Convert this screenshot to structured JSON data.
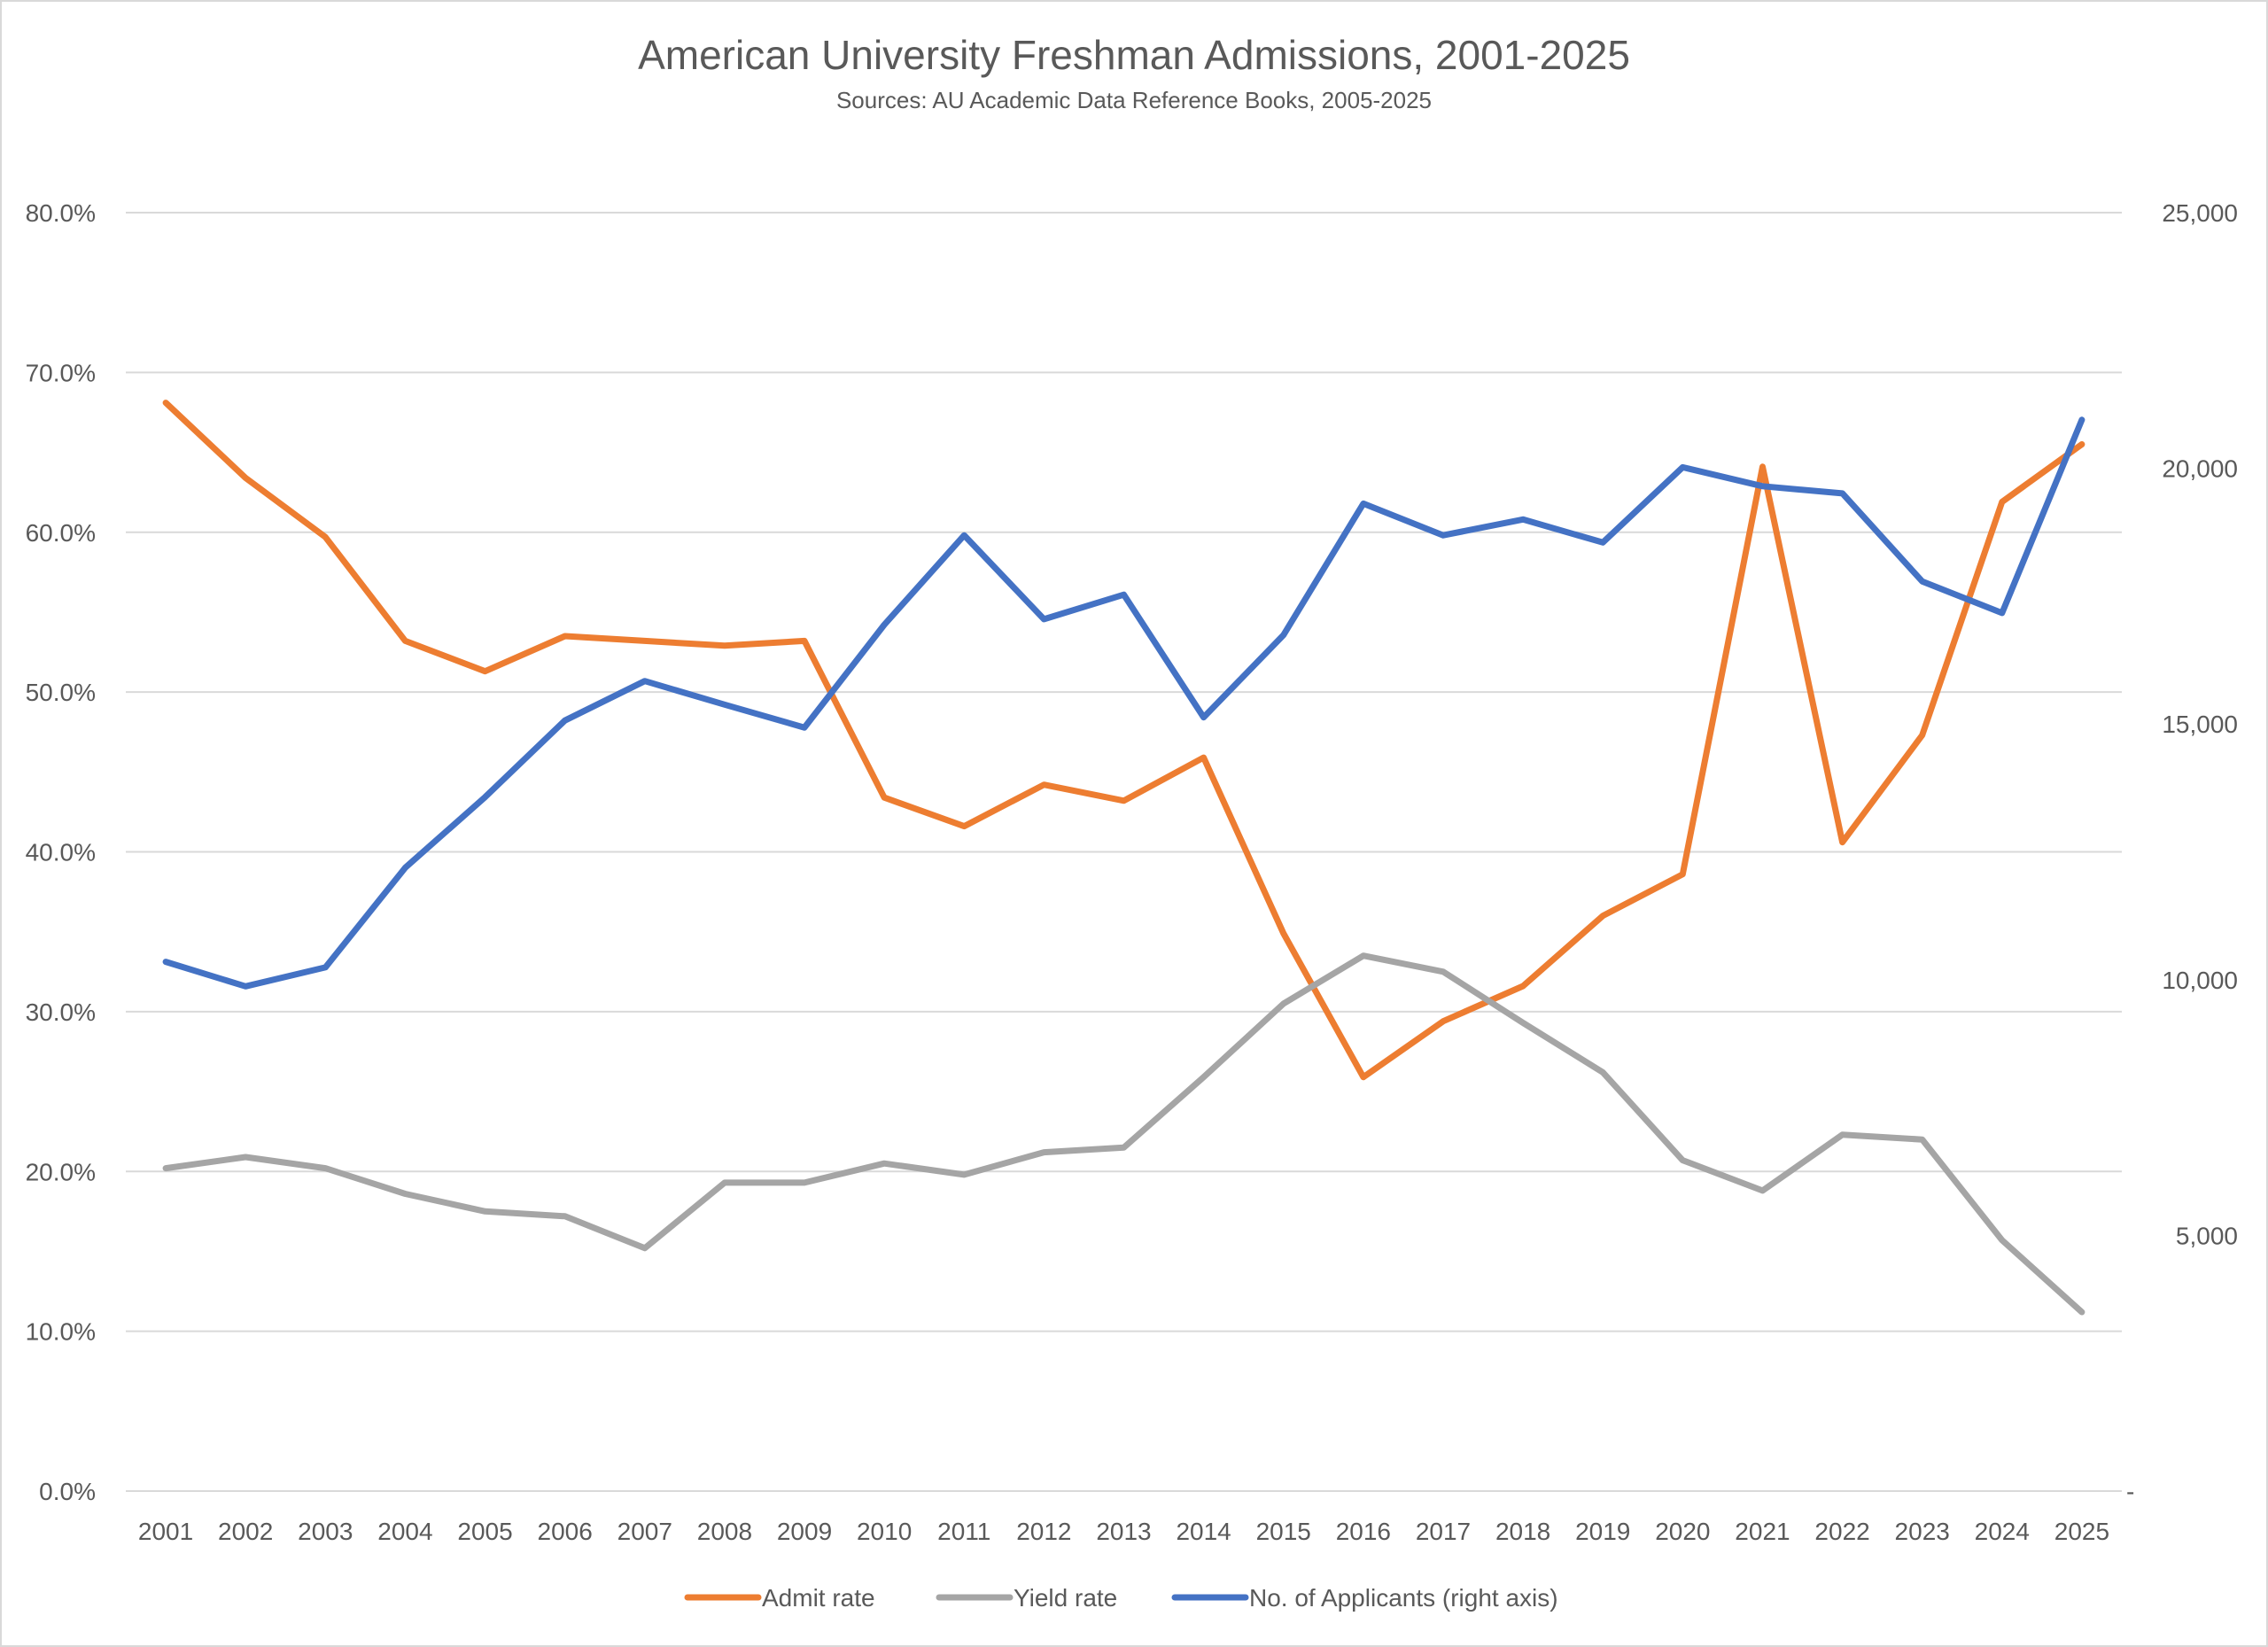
{
  "chart_data": {
    "type": "line",
    "title": "American University Freshman Admissions, 2001-2025",
    "subtitle": "Sources: AU Academic Data Reference Books, 2005-2025",
    "categories": [
      "2001",
      "2002",
      "2003",
      "2004",
      "2005",
      "2006",
      "2007",
      "2008",
      "2009",
      "2010",
      "2011",
      "2012",
      "2013",
      "2014",
      "2015",
      "2016",
      "2017",
      "2018",
      "2019",
      "2020",
      "2021",
      "2022",
      "2023",
      "2024",
      "2025"
    ],
    "left_axis": {
      "ylim": [
        0,
        80
      ],
      "ticks": [
        0,
        10,
        20,
        30,
        40,
        50,
        60,
        70,
        80
      ],
      "tick_labels": [
        "0.0%",
        "10.0%",
        "20.0%",
        "30.0%",
        "40.0%",
        "50.0%",
        "60.0%",
        "70.0%",
        "80.0%"
      ]
    },
    "right_axis": {
      "ylim": [
        0,
        25000
      ],
      "ticks": [
        0,
        5000,
        10000,
        15000,
        20000,
        25000
      ],
      "tick_labels": [
        "-",
        "5,000",
        "10,000",
        "15,000",
        "20,000",
        "25,000"
      ]
    },
    "grid": true,
    "legend_position": "bottom",
    "series": [
      {
        "name": "Admit rate",
        "axis": "left",
        "color": "#ED7D31",
        "values": [
          68.1,
          63.4,
          59.7,
          53.2,
          51.3,
          53.5,
          53.2,
          52.9,
          53.2,
          43.4,
          41.6,
          44.2,
          43.2,
          45.9,
          34.9,
          25.9,
          29.4,
          31.6,
          36.0,
          38.6,
          64.1,
          40.6,
          47.3,
          61.9,
          65.5
        ]
      },
      {
        "name": "Yield rate",
        "axis": "left",
        "color": "#A5A5A5",
        "values": [
          20.2,
          20.9,
          20.2,
          18.6,
          17.5,
          17.2,
          15.2,
          19.3,
          19.3,
          20.5,
          19.8,
          21.2,
          21.5,
          25.9,
          30.5,
          33.5,
          32.5,
          29.3,
          26.2,
          20.7,
          18.8,
          22.3,
          22.0,
          15.7,
          11.2
        ]
      },
      {
        "name": "No. of Applicants (right axis)",
        "axis": "right",
        "color": "#4472C4",
        "values": [
          10350,
          9870,
          10240,
          12190,
          13570,
          15070,
          15840,
          15380,
          14930,
          16940,
          18690,
          17050,
          17530,
          15130,
          16740,
          19310,
          18690,
          19000,
          18550,
          20020,
          19650,
          19510,
          17790,
          17170,
          20950
        ]
      }
    ]
  }
}
